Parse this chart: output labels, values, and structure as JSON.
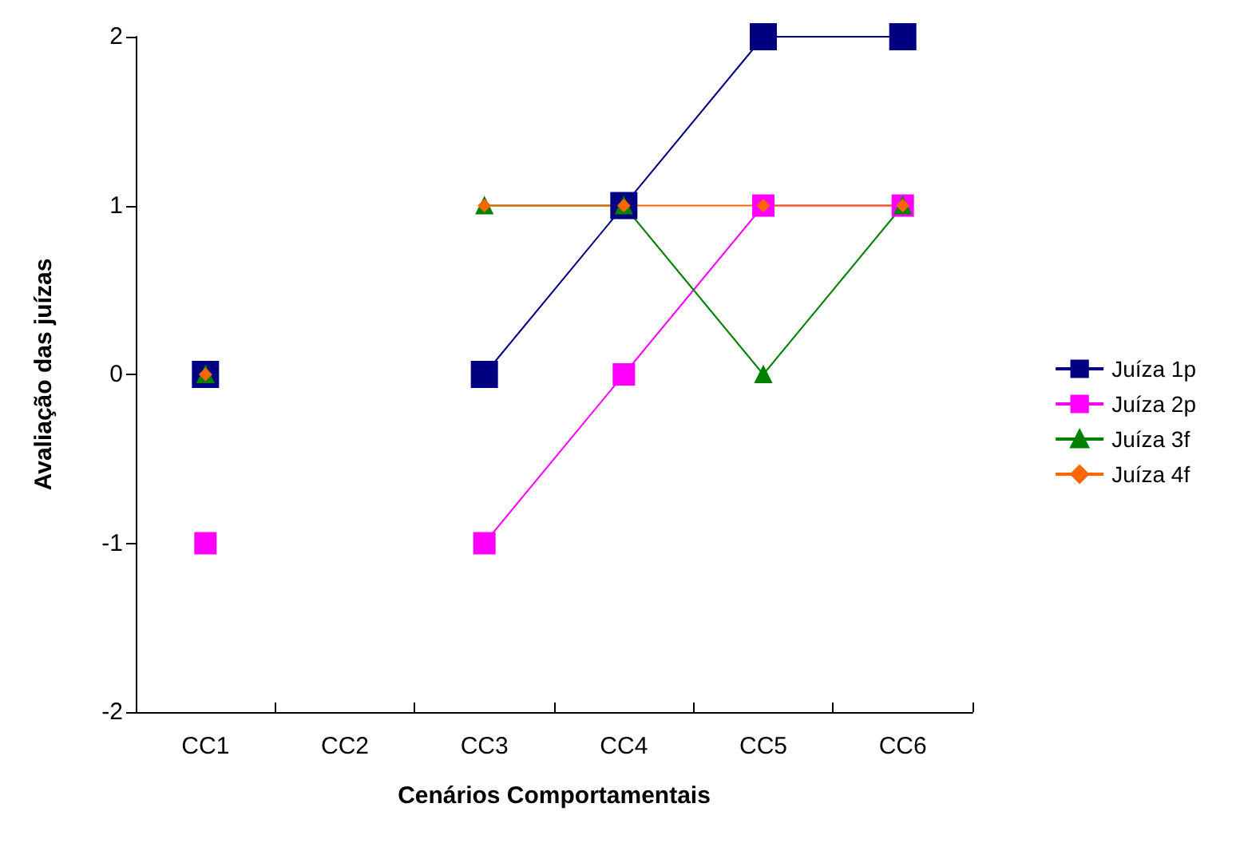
{
  "chart_data": {
    "type": "line",
    "xlabel": "Cenários Comportamentais",
    "ylabel": "Avaliação das juízas",
    "categories": [
      "CC1",
      "CC2",
      "CC3",
      "CC4",
      "CC5",
      "CC6"
    ],
    "series": [
      {
        "name": "Juíza 1p",
        "color": "#000080",
        "marker": "square",
        "values": [
          0,
          null,
          0,
          1,
          2,
          2
        ]
      },
      {
        "name": "Juíza 2p",
        "color": "#ff00ff",
        "marker": "square",
        "values": [
          -1,
          null,
          -1,
          0,
          1,
          1
        ]
      },
      {
        "name": "Juíza 3f",
        "color": "#008000",
        "marker": "triangle",
        "values": [
          0,
          null,
          1,
          1,
          0,
          1
        ]
      },
      {
        "name": "Juíza 4f",
        "color": "#ff6600",
        "marker": "diamond",
        "values": [
          0,
          null,
          1,
          1,
          1,
          1
        ]
      }
    ],
    "ylim": [
      -2,
      2
    ],
    "yticks": [
      -2,
      -1,
      0,
      1,
      2
    ],
    "grid": false,
    "legend": "right",
    "line_style": "solid"
  }
}
